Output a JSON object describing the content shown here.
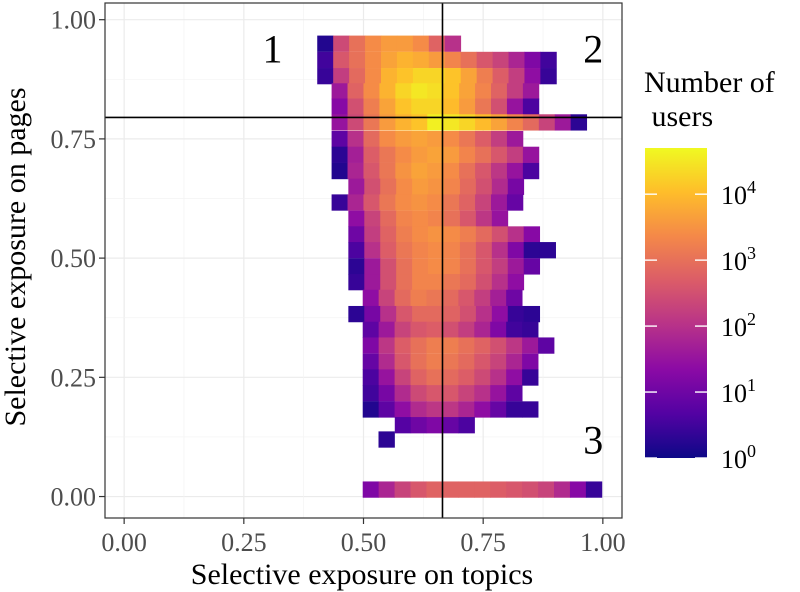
{
  "chart_data": {
    "type": "heatmap",
    "xlabel": "Selective exposure on topics",
    "ylabel": "Selective exposure on pages",
    "xlim": [
      -0.04,
      1.04
    ],
    "ylim": [
      -0.045,
      1.035
    ],
    "x_ticks": [
      {
        "value": 0.0,
        "label": "0.00"
      },
      {
        "value": 0.25,
        "label": "0.25"
      },
      {
        "value": 0.5,
        "label": "0.50"
      },
      {
        "value": 0.75,
        "label": "0.75"
      },
      {
        "value": 1.0,
        "label": "1.00"
      }
    ],
    "y_ticks": [
      {
        "value": 0.0,
        "label": "0.00"
      },
      {
        "value": 0.25,
        "label": "0.25"
      },
      {
        "value": 0.5,
        "label": "0.50"
      },
      {
        "value": 0.75,
        "label": "0.75"
      },
      {
        "value": 1.0,
        "label": "1.00"
      }
    ],
    "grid": true,
    "bin_width": 0.0333,
    "bin_height": 0.0333,
    "color_scale": {
      "title_lines": [
        "Number of",
        " users"
      ],
      "scale": "log10",
      "domain_exponents": [
        0,
        4.7
      ],
      "ticks": [
        {
          "exponent": 0,
          "label_base": "10",
          "label_exp": "0"
        },
        {
          "exponent": 1,
          "label_base": "10",
          "label_exp": "1"
        },
        {
          "exponent": 2,
          "label_base": "10",
          "label_exp": "2"
        },
        {
          "exponent": 3,
          "label_base": "10",
          "label_exp": "3"
        },
        {
          "exponent": 4,
          "label_base": "10",
          "label_exp": "4"
        }
      ],
      "colormap": [
        "#0d0887",
        "#5302a3",
        "#8b0aa5",
        "#b83289",
        "#db5c68",
        "#f48849",
        "#febd2a",
        "#f0f921"
      ],
      "palette": "plasma"
    },
    "reference_lines": {
      "vertical_x": 0.665,
      "horizontal_y": 0.795
    },
    "region_labels": [
      {
        "text": "1",
        "x": 0.31,
        "y": 0.94
      },
      {
        "text": "2",
        "x": 0.98,
        "y": 0.94
      },
      {
        "text": "3",
        "x": 0.98,
        "y": 0.12
      }
    ],
    "heat_rows": [
      {
        "y": 0.95,
        "x_start": 0.42,
        "values": [
          0.2,
          2.4,
          3.0,
          3.4,
          3.6,
          3.6,
          3.4,
          2.8,
          2.0
        ]
      },
      {
        "y": 0.916,
        "x_start": 0.42,
        "values": [
          0.5,
          2.6,
          3.0,
          3.4,
          3.7,
          3.9,
          3.8,
          3.6,
          3.3,
          3.0,
          2.6,
          2.3,
          1.8,
          1.2,
          0.5
        ]
      },
      {
        "y": 0.882,
        "x_start": 0.42,
        "values": [
          0.4,
          2.2,
          2.9,
          3.4,
          3.9,
          4.1,
          4.3,
          4.3,
          4.1,
          3.7,
          3.2,
          2.7,
          2.2,
          1.4,
          0.4
        ]
      },
      {
        "y": 0.85,
        "x_start": 0.45,
        "values": [
          1.6,
          2.8,
          3.4,
          3.9,
          4.3,
          4.5,
          4.4,
          4.1,
          3.7,
          3.3,
          2.8,
          2.2,
          1.6
        ]
      },
      {
        "y": 0.818,
        "x_start": 0.45,
        "values": [
          1.3,
          2.5,
          3.2,
          3.7,
          4.1,
          4.3,
          4.3,
          4.0,
          3.6,
          3.1,
          2.5,
          1.5,
          0.6
        ]
      },
      {
        "y": 0.785,
        "x_start": 0.45,
        "values": [
          1.5,
          2.4,
          3.1,
          3.6,
          3.9,
          4.1,
          4.6,
          4.5,
          4.3,
          4.0,
          3.7,
          3.3,
          2.9,
          2.3,
          1.6,
          0.3
        ]
      },
      {
        "y": 0.75,
        "x_start": 0.45,
        "values": [
          0.8,
          2.0,
          2.9,
          3.4,
          3.6,
          3.7,
          3.6,
          3.4,
          3.1,
          2.7,
          2.2,
          1.6
        ]
      },
      {
        "y": 0.717,
        "x_start": 0.45,
        "values": [
          0.3,
          1.7,
          2.7,
          3.1,
          3.4,
          3.6,
          3.7,
          3.6,
          3.3,
          3.0,
          2.6,
          2.2,
          1.5
        ]
      },
      {
        "y": 0.683,
        "x_start": 0.45,
        "values": [
          0.2,
          1.8,
          2.6,
          3.1,
          3.5,
          3.7,
          3.6,
          3.4,
          3.0,
          2.6,
          2.1,
          1.5,
          0.6
        ]
      },
      {
        "y": 0.65,
        "x_start": 0.485,
        "values": [
          1.6,
          2.5,
          3.0,
          3.4,
          3.6,
          3.5,
          3.3,
          2.9,
          2.5,
          1.9,
          1.1
        ]
      },
      {
        "y": 0.617,
        "x_start": 0.45,
        "values": [
          0.4,
          1.8,
          2.6,
          3.1,
          3.4,
          3.5,
          3.4,
          3.1,
          2.8,
          2.3,
          1.6,
          0.9
        ]
      },
      {
        "y": 0.583,
        "x_start": 0.485,
        "values": [
          1.4,
          2.3,
          2.9,
          3.3,
          3.4,
          3.3,
          3.0,
          2.6,
          2.1,
          1.5
        ]
      },
      {
        "y": 0.55,
        "x_start": 0.485,
        "values": [
          1.0,
          2.2,
          2.8,
          3.2,
          3.4,
          3.5,
          3.4,
          3.2,
          2.9,
          2.5,
          2.0,
          1.3
        ]
      },
      {
        "y": 0.517,
        "x_start": 0.485,
        "values": [
          0.6,
          2.0,
          2.7,
          3.1,
          3.3,
          3.4,
          3.3,
          3.0,
          2.6,
          2.0,
          1.2,
          0.3,
          0.3
        ]
      },
      {
        "y": 0.483,
        "x_start": 0.485,
        "values": [
          0.3,
          1.6,
          2.5,
          3.0,
          3.3,
          3.4,
          3.3,
          3.0,
          2.6,
          2.2,
          1.6,
          0.9
        ]
      },
      {
        "y": 0.45,
        "x_start": 0.485,
        "values": [
          0.4,
          1.6,
          2.5,
          3.0,
          3.3,
          3.3,
          3.1,
          2.9,
          2.5,
          2.0,
          1.4
        ]
      },
      {
        "y": 0.417,
        "x_start": 0.515,
        "values": [
          1.4,
          2.3,
          2.9,
          3.2,
          3.1,
          2.9,
          2.6,
          2.2,
          1.7,
          1.0
        ]
      },
      {
        "y": 0.383,
        "x_start": 0.485,
        "values": [
          0.3,
          1.1,
          2.0,
          2.6,
          2.9,
          2.9,
          2.8,
          2.5,
          2.0,
          1.4,
          0.4,
          0.3
        ]
      },
      {
        "y": 0.35,
        "x_start": 0.515,
        "values": [
          0.8,
          1.6,
          2.3,
          2.6,
          2.7,
          2.5,
          2.2,
          1.8,
          1.2,
          0.5,
          0.4
        ]
      },
      {
        "y": 0.317,
        "x_start": 0.515,
        "values": [
          1.2,
          2.1,
          2.7,
          3.0,
          3.2,
          3.2,
          3.0,
          2.8,
          2.5,
          2.1,
          1.6,
          0.8
        ]
      },
      {
        "y": 0.283,
        "x_start": 0.515,
        "values": [
          0.9,
          1.9,
          2.6,
          3.0,
          3.2,
          3.1,
          2.9,
          2.6,
          2.3,
          1.8,
          1.2
        ]
      },
      {
        "y": 0.25,
        "x_start": 0.515,
        "values": [
          0.6,
          1.5,
          2.3,
          2.8,
          3.0,
          2.9,
          2.7,
          2.4,
          2.0,
          1.4,
          0.4
        ]
      },
      {
        "y": 0.217,
        "x_start": 0.515,
        "values": [
          0.5,
          1.1,
          1.9,
          2.4,
          2.6,
          2.6,
          2.3,
          2.0,
          1.5,
          0.8
        ]
      },
      {
        "y": 0.183,
        "x_start": 0.515,
        "values": [
          0.2,
          0.8,
          1.4,
          1.9,
          2.1,
          2.1,
          1.8,
          1.4,
          0.9,
          0.4,
          0.4
        ]
      },
      {
        "y": 0.15,
        "x_start": 0.582,
        "values": [
          0.7,
          1.0,
          1.2,
          0.9,
          0.6
        ]
      },
      {
        "y": 0.12,
        "x_start": 0.548,
        "values": [
          0.3
        ]
      },
      {
        "y": 0.015,
        "x_start": 0.515,
        "values": [
          1.2,
          1.8,
          2.3,
          2.6,
          2.8,
          2.8,
          2.8,
          2.8,
          2.7,
          2.6,
          2.5,
          2.3,
          1.9,
          1.3,
          0.4
        ]
      }
    ]
  }
}
